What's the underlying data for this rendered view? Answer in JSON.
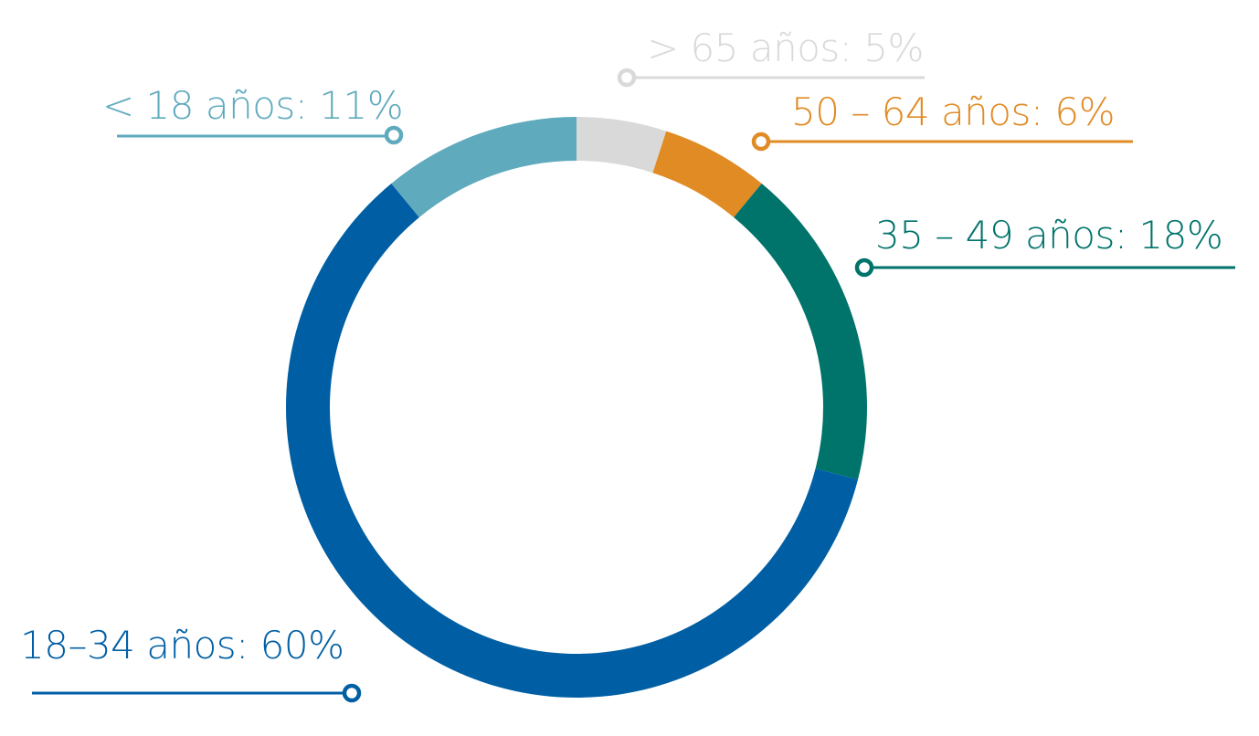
{
  "chart_data": {
    "type": "pie",
    "variant": "donut",
    "title": "",
    "start": "top",
    "direction": "clockwise",
    "legend": "none",
    "slices": [
      {
        "label": "> 65 años: 5%",
        "value": 5,
        "color": "#D9D9D9"
      },
      {
        "label": "50 – 64 años: 6%",
        "value": 6,
        "color": "#E18B25"
      },
      {
        "label": "35 – 49 años: 18%",
        "value": 18,
        "color": "#00736B"
      },
      {
        "label": "18–34 años: 60%",
        "value": 60,
        "color": "#005FA4"
      },
      {
        "label": "< 18 años: 11%",
        "value": 11,
        "color": "#5FAABD"
      }
    ]
  }
}
